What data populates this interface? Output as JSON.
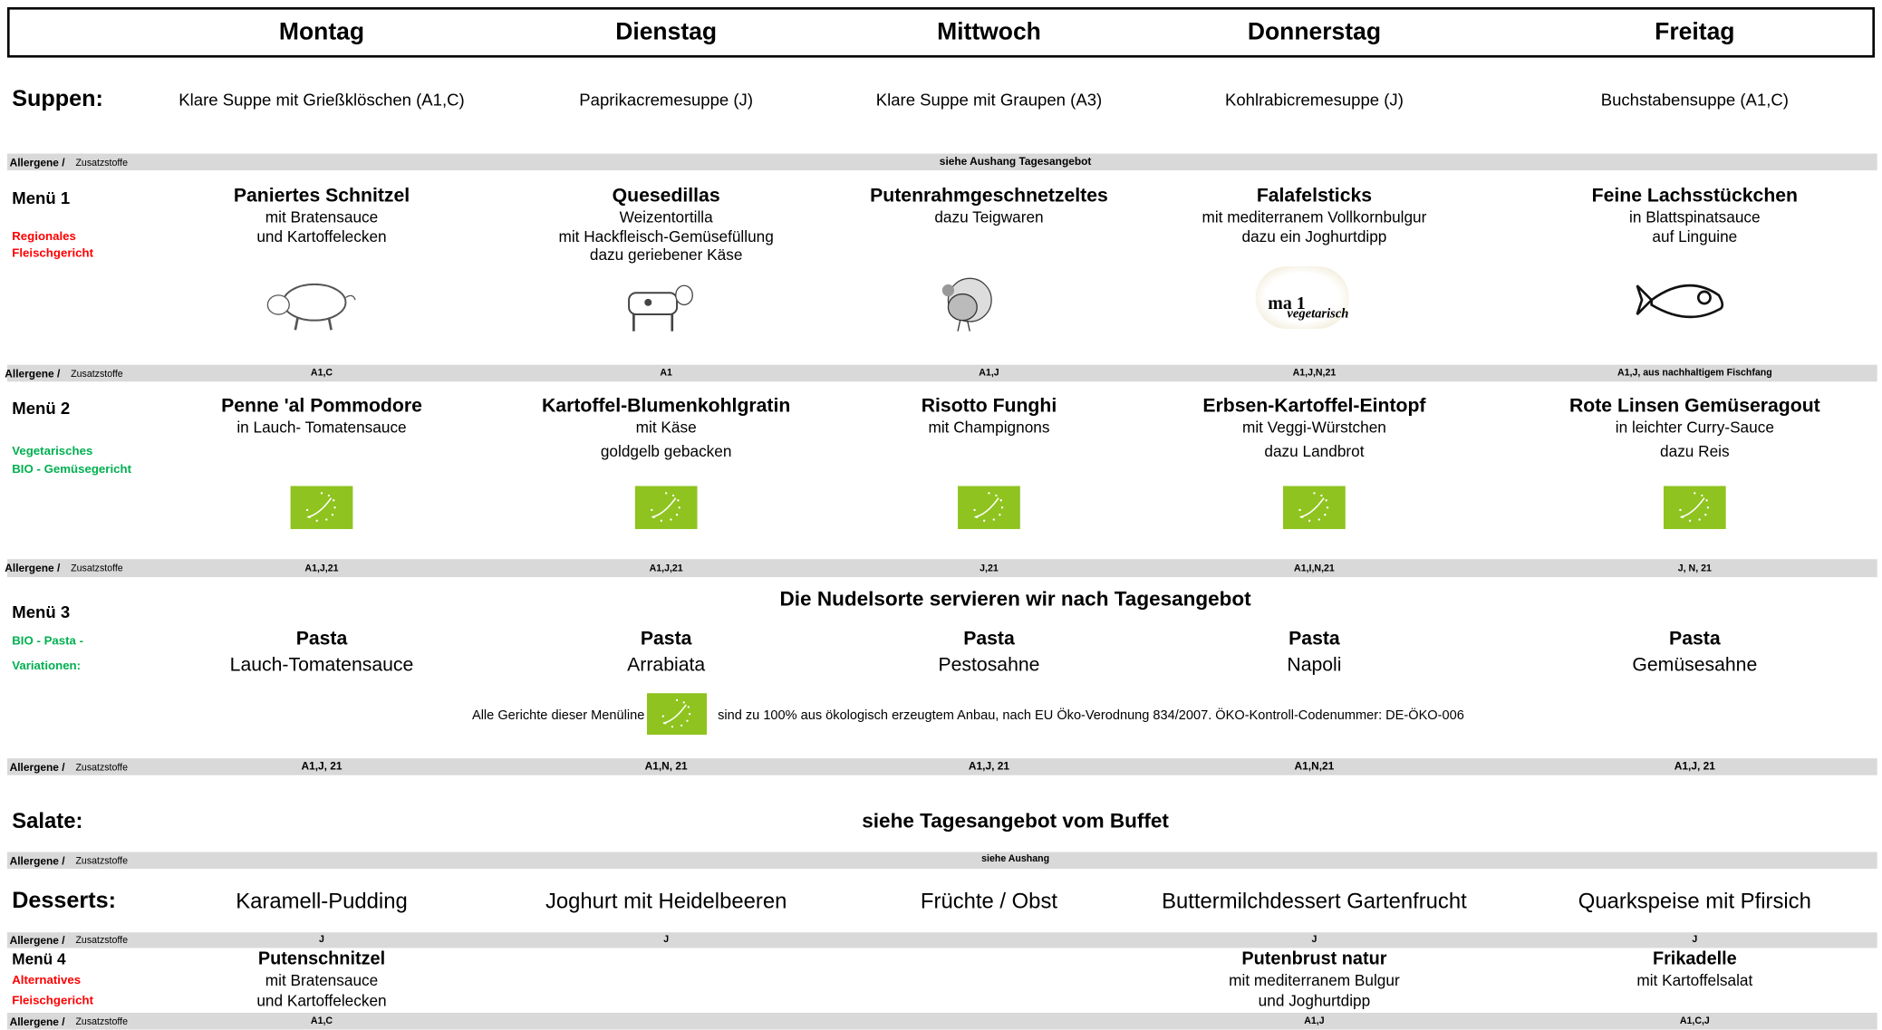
{
  "days": [
    "Montag",
    "Dienstag",
    "Mittwoch",
    "Donnerstag",
    "Freitag"
  ],
  "allergen_label": {
    "bold": "Allergene /",
    "small": "Zusatzstoffe"
  },
  "soups": {
    "label": "Suppen:",
    "items": [
      "Klare Suppe mit Grießklöschen (A1,C)",
      "Paprikacremesuppe (J)",
      "Klare Suppe mit Graupen (A3)",
      "Kohlrabicremesuppe (J)",
      "Buchstabensuppe  (A1,C)"
    ],
    "allergens": "siehe Aushang Tagesangebot"
  },
  "menu1": {
    "label": "Menü 1",
    "sublabel": [
      "Regionales",
      "Fleischgericht"
    ],
    "items": [
      {
        "title": "Paniertes Schnitzel",
        "lines": [
          "mit Bratensauce",
          "und Kartoffelecken"
        ]
      },
      {
        "title": "Quesedillas",
        "lines": [
          "Weizentortilla",
          "mit Hackfleisch-Gemüsefüllung",
          "dazu geriebener Käse"
        ]
      },
      {
        "title": "Putenrahmgeschnetzeltes",
        "lines": [
          "dazu Teigwaren"
        ]
      },
      {
        "title": "Falafelsticks",
        "lines": [
          "mit mediterranem Vollkornbulgur",
          "dazu ein Joghurtdipp"
        ]
      },
      {
        "title": "Feine Lachsstückchen",
        "lines": [
          "in Blattspinatsauce",
          "auf Linguine"
        ]
      }
    ],
    "logo": [
      "ma 1",
      "vegetarisch"
    ],
    "allergens": [
      "A1,C",
      "A1",
      "A1,J",
      "A1,J,N,21",
      "A1,J, aus nachhaltigem Fischfang"
    ]
  },
  "menu2": {
    "label": "Menü 2",
    "sublabel": [
      "Vegetarisches",
      "BIO - Gemüsegericht"
    ],
    "items": [
      {
        "title": "Penne 'al Pommodore",
        "lines": [
          "in Lauch- Tomatensauce"
        ]
      },
      {
        "title": "Kartoffel-Blumenkohlgratin",
        "lines": [
          "mit Käse",
          "goldgelb gebacken"
        ]
      },
      {
        "title": "Risotto Funghi",
        "lines": [
          "mit Champignons"
        ]
      },
      {
        "title": "Erbsen-Kartoffel-Eintopf",
        "lines": [
          "mit Veggi-Würstchen",
          "dazu Landbrot"
        ]
      },
      {
        "title": "Rote Linsen Gemüseragout",
        "lines": [
          "in leichter Curry-Sauce",
          "dazu Reis"
        ]
      }
    ],
    "allergens": [
      "A1,J,21",
      "A1,J,21",
      "J,21",
      "A1,I,N,21",
      "J, N, 21"
    ]
  },
  "menu3": {
    "label": "Menü 3",
    "sublabel": [
      "BIO - Pasta -",
      "Variationen:"
    ],
    "headline": "Die Nudelsorte servieren wir nach Tagesangebot",
    "items": [
      {
        "title": "Pasta",
        "lines": [
          "Lauch-Tomatensauce"
        ]
      },
      {
        "title": "Pasta",
        "lines": [
          "Arrabiata"
        ]
      },
      {
        "title": "Pasta",
        "lines": [
          "Pestosahne"
        ]
      },
      {
        "title": "Pasta",
        "lines": [
          "Napoli"
        ]
      },
      {
        "title": "Pasta",
        "lines": [
          "Gemüsesahne"
        ]
      }
    ],
    "note_before": "Alle Gerichte dieser Menüline",
    "note_after": "sind zu 100% aus ökologisch erzeugtem Anbau, nach EU Öko-Verodnung 834/2007. ÖKO-Kontroll-Codenummer: DE-ÖKO-006",
    "allergens": [
      "A1,J, 21",
      "A1,N, 21",
      "A1,J, 21",
      "A1,N,21",
      "A1,J, 21"
    ]
  },
  "salads": {
    "label": "Salate:",
    "text": "siehe Tagesangebot vom Buffet",
    "allergens": "siehe Aushang"
  },
  "desserts": {
    "label": "Desserts:",
    "items": [
      "Karamell-Pudding",
      "Joghurt mit Heidelbeeren",
      "Früchte / Obst",
      "Buttermilchdessert Gartenfrucht",
      "Quarkspeise mit Pfirsich"
    ],
    "allergens": [
      "J",
      "J",
      null,
      "J",
      "J"
    ]
  },
  "menu4": {
    "label": "Menü 4",
    "sublabel": [
      "Alternatives",
      "Fleischgericht"
    ],
    "items": [
      {
        "title": "Putenschnitzel",
        "lines": [
          "mit Bratensauce",
          "und Kartoffelecken"
        ]
      },
      null,
      null,
      {
        "title": "Putenbrust natur",
        "lines": [
          "mit mediterranem Bulgur",
          "und Joghurtdipp"
        ]
      },
      {
        "title": "Frikadelle",
        "lines": [
          "mit Kartoffelsalat"
        ]
      }
    ],
    "allergens": [
      "A1,C",
      null,
      null,
      "A1,J",
      "A1,C,J"
    ]
  }
}
